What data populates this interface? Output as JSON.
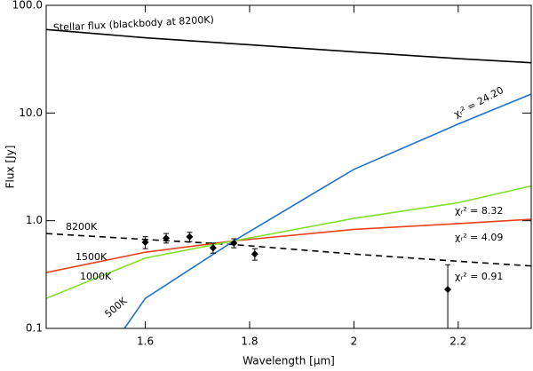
{
  "chart_data": {
    "type": "line",
    "xlabel": "Wavelength [μm]",
    "ylabel": "Flux [Jy]",
    "xlim": [
      1.41,
      2.34
    ],
    "ylim": [
      0.1,
      100
    ],
    "log_y": true,
    "xticks": [
      1.6,
      1.8,
      2.0,
      2.2
    ],
    "yticks": [
      0.1,
      {
        "value": 1,
        "label": "1.0"
      },
      {
        "value": 10,
        "label": "10.0"
      },
      {
        "value": 100,
        "label": "100.0"
      }
    ],
    "series": [
      {
        "name": "Stellar flux (blackbody at 8200K)",
        "color": "#000000",
        "dash": false,
        "x": [
          1.41,
          1.6,
          1.8,
          2.0,
          2.2,
          2.34
        ],
        "values": [
          59.6,
          50,
          43,
          37,
          32,
          29.3
        ]
      },
      {
        "name": "8200K",
        "color": "#000000",
        "dash": true,
        "x": [
          1.41,
          1.6,
          1.77,
          2.0,
          2.2,
          2.34
        ],
        "values": [
          0.76,
          0.67,
          0.6,
          0.49,
          0.42,
          0.38
        ]
      },
      {
        "name": "1500K",
        "color": "#e8401c",
        "dash": false,
        "x": [
          1.41,
          1.6,
          1.77,
          2.0,
          2.2,
          2.34
        ],
        "values": [
          0.33,
          0.51,
          0.65,
          0.83,
          0.94,
          1.03
        ]
      },
      {
        "name": "1000K",
        "color": "#7fe02a",
        "dash": false,
        "x": [
          1.41,
          1.6,
          1.77,
          2.0,
          2.2,
          2.34
        ],
        "values": [
          0.19,
          0.45,
          0.65,
          1.05,
          1.47,
          2.1
        ]
      },
      {
        "name": "500K",
        "color": "#1f6fd0",
        "dash": false,
        "x": [
          1.56,
          1.6,
          1.77,
          2.0,
          2.2,
          2.34
        ],
        "values": [
          0.1,
          0.19,
          0.65,
          3.0,
          7.9,
          15
        ]
      }
    ],
    "points": {
      "color": "#000000",
      "x": [
        1.6,
        1.64,
        1.685,
        1.73,
        1.77,
        1.81,
        2.18
      ],
      "values": [
        0.63,
        0.69,
        0.71,
        0.56,
        0.62,
        0.49,
        0.23
      ],
      "errors": [
        0.08,
        0.07,
        0.07,
        0.06,
        0.06,
        0.06,
        0.16
      ]
    },
    "annotations": [
      "χᵣ² = 24.20",
      "χᵣ² = 8.32",
      "χᵣ² = 4.09",
      "χᵣ² = 0.91"
    ]
  }
}
